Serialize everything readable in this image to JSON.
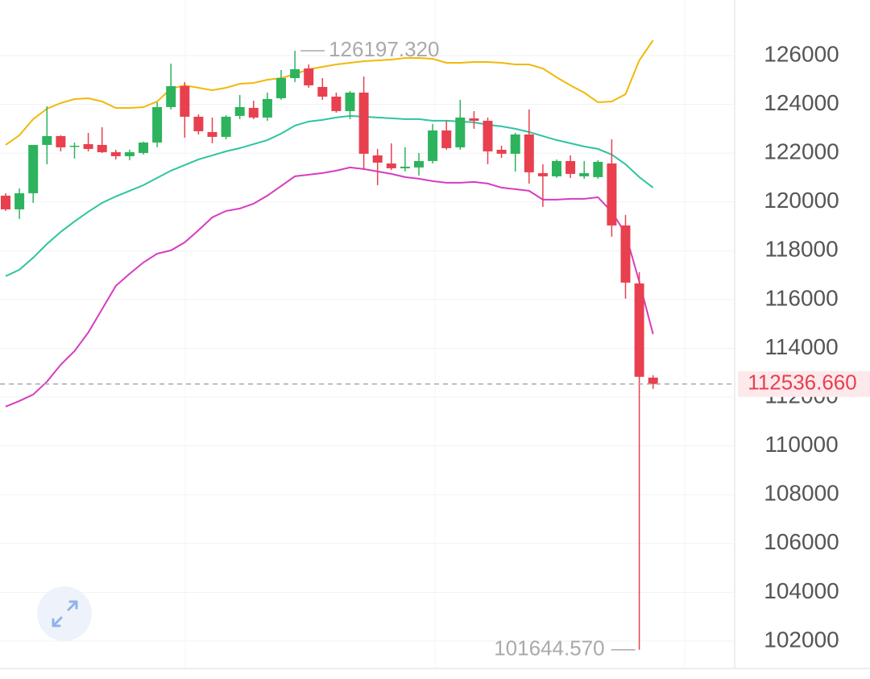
{
  "chart_data": {
    "type": "candlestick",
    "ylim": [
      100877,
      128277
    ],
    "yticks": [
      102000,
      104000,
      106000,
      108000,
      110000,
      112000,
      114000,
      116000,
      118000,
      120000,
      122000,
      124000,
      126000
    ],
    "grid": true,
    "up_color": "#2db35d",
    "down_color": "#e8404f",
    "open": [
      120258,
      119697,
      120357,
      122337,
      122700,
      122271,
      122370,
      122337,
      122040,
      121875,
      122007,
      122436,
      123888,
      124746,
      123492,
      122865,
      122667,
      123525,
      123855,
      123459,
      124251,
      125076,
      125472,
      124713,
      124317,
      123723,
      124482,
      121908,
      121578,
      121380,
      121413,
      121677,
      122931,
      122238,
      123426,
      123327,
      122139,
      121974,
      122766,
      121182,
      121050,
      121677,
      121050,
      121017,
      121578,
      119037,
      116661,
      112800
    ],
    "high": [
      120357,
      120555,
      122337,
      123921,
      122733,
      122436,
      122832,
      123063,
      122139,
      122139,
      122469,
      124086,
      125670,
      124911,
      123591,
      123459,
      123558,
      124383,
      124152,
      124482,
      125406,
      126197.32,
      125637,
      125076,
      124482,
      124548,
      125142,
      122172,
      122403,
      122238,
      122007,
      123195,
      123327,
      124185,
      123723,
      123459,
      122304,
      122832,
      123789,
      121545,
      121743,
      121908,
      121677,
      121710,
      122568,
      119466,
      117123,
      112899
    ],
    "low": [
      119631,
      119301,
      119961,
      121545,
      122073,
      121776,
      122073,
      122007,
      121743,
      121710,
      121941,
      122238,
      123789,
      122634,
      122766,
      122403,
      122568,
      123393,
      123393,
      123327,
      124185,
      124911,
      124680,
      124185,
      123657,
      123393,
      121314,
      120687,
      121314,
      121248,
      121083,
      121578,
      122139,
      122139,
      122997,
      121545,
      121809,
      121248,
      120753,
      119796,
      120987,
      120984,
      120951,
      120951,
      118575,
      116034,
      101644.57,
      112338
    ],
    "close": [
      119697,
      120357,
      122337,
      122700,
      122238,
      122304,
      122172,
      122040,
      121875,
      122040,
      122436,
      123888,
      124746,
      123492,
      122898,
      122667,
      123492,
      123888,
      123459,
      124218,
      125076,
      125439,
      124779,
      124317,
      123723,
      124482,
      121974,
      121611,
      121380,
      121446,
      121677,
      122931,
      122205,
      123459,
      123327,
      122073,
      121974,
      122766,
      121215,
      121050,
      121677,
      121149,
      121182,
      121644,
      119037,
      116694,
      112833,
      112536.66
    ],
    "bands": [
      {
        "color": "#f0b90b",
        "values": [
          122337,
          122733,
          123393,
          123822,
          124053,
          124218,
          124251,
          124119,
          123855,
          123855,
          123888,
          124119,
          124647,
          124779,
          124680,
          124581,
          124680,
          124845,
          124878,
          125010,
          125076,
          125241,
          125439,
          125538,
          125637,
          125703,
          125769,
          125802,
          125835,
          125901,
          125901,
          125868,
          125703,
          125703,
          125736,
          125736,
          125703,
          125637,
          125637,
          125472,
          125109,
          124779,
          124482,
          124086,
          124119,
          124416,
          125802,
          126627
        ]
      },
      {
        "color": "#2ec4a0",
        "values": [
          116958,
          117222,
          117717,
          118278,
          118773,
          119202,
          119598,
          119961,
          120225,
          120456,
          120687,
          120984,
          121281,
          121512,
          121743,
          121908,
          122073,
          122205,
          122370,
          122535,
          122799,
          123129,
          123294,
          123360,
          123459,
          123525,
          123492,
          123459,
          123426,
          123393,
          123393,
          123327,
          123327,
          123294,
          123261,
          123162,
          123096,
          122997,
          122865,
          122700,
          122535,
          122403,
          122271,
          122172,
          121941,
          121545,
          121017,
          120588
        ]
      },
      {
        "color": "#d63cc0",
        "values": [
          111612,
          111843,
          112107,
          112635,
          113328,
          113889,
          114648,
          115605,
          116562,
          117057,
          117519,
          117882,
          118014,
          118344,
          118839,
          119367,
          119631,
          119730,
          119928,
          120258,
          120654,
          121050,
          121116,
          121182,
          121281,
          121413,
          121347,
          121248,
          121149,
          121017,
          120951,
          120852,
          120786,
          120786,
          120819,
          120753,
          120588,
          120522,
          120456,
          120093,
          120093,
          120126,
          120126,
          120192,
          119598,
          118707,
          116727,
          114582
        ]
      }
    ],
    "annotations": [
      {
        "value": 126197.32,
        "label": "126197.320",
        "index": 21,
        "side": "right"
      },
      {
        "value": 101644.57,
        "label": "101644.570",
        "index": 46,
        "side": "left"
      }
    ],
    "last_price": {
      "value": 112536.66,
      "label": "112536.660"
    }
  }
}
